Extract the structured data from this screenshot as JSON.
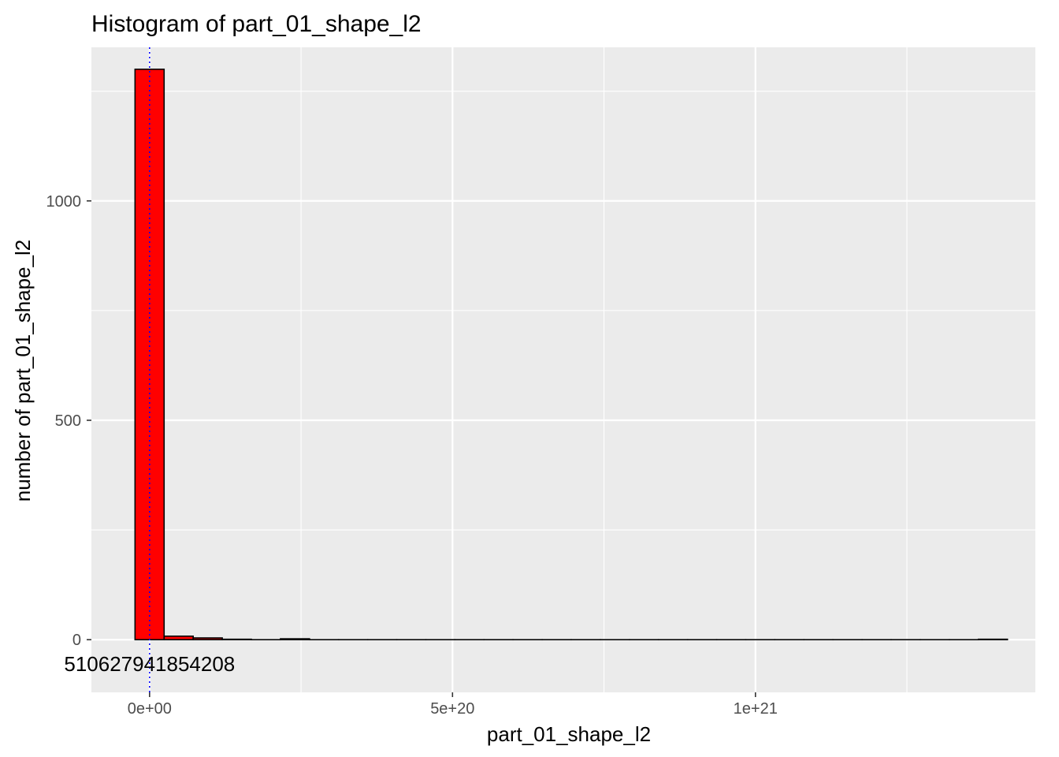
{
  "chart_data": {
    "type": "bar",
    "title": "Histogram of  part_01_shape_l2",
    "xlabel": "part_01_shape_l2",
    "ylabel": "number of  part_01_shape_l2",
    "x_ticks": [
      {
        "value": 0,
        "label": "0e+00"
      },
      {
        "value": 5e+20,
        "label": "5e+20"
      },
      {
        "value": 1e+21,
        "label": "1e+21"
      }
    ],
    "y_ticks": [
      {
        "value": 0,
        "label": "0"
      },
      {
        "value": 500,
        "label": "500"
      },
      {
        "value": 1000,
        "label": "1000"
      }
    ],
    "xlim": [
      -9.6e+19,
      1.462e+21
    ],
    "ylim": [
      -120,
      1350
    ],
    "bin_width": 4.8e+19,
    "bins": [
      {
        "x_start": -2.4e+19,
        "count": 1300
      },
      {
        "x_start": 2.4e+19,
        "count": 8
      },
      {
        "x_start": 7.2e+19,
        "count": 4
      },
      {
        "x_start": 1.2e+20,
        "count": 1
      },
      {
        "x_start": 1.68e+20,
        "count": 0
      },
      {
        "x_start": 2.16e+20,
        "count": 2
      },
      {
        "x_start": 2.64e+20,
        "count": 0
      },
      {
        "x_start": 3.12e+20,
        "count": 0
      },
      {
        "x_start": 3.6e+20,
        "count": 0
      },
      {
        "x_start": 4.08e+20,
        "count": 0
      },
      {
        "x_start": 4.56e+20,
        "count": 0
      },
      {
        "x_start": 5.04e+20,
        "count": 0
      },
      {
        "x_start": 5.52e+20,
        "count": 0
      },
      {
        "x_start": 6e+20,
        "count": 0
      },
      {
        "x_start": 6.48e+20,
        "count": 0
      },
      {
        "x_start": 6.96e+20,
        "count": 0
      },
      {
        "x_start": 7.44e+20,
        "count": 0
      },
      {
        "x_start": 7.92e+20,
        "count": 0
      },
      {
        "x_start": 8.4e+20,
        "count": 0
      },
      {
        "x_start": 8.88e+20,
        "count": 0
      },
      {
        "x_start": 9.36e+20,
        "count": 0
      },
      {
        "x_start": 9.84e+20,
        "count": 0
      },
      {
        "x_start": 1.032e+21,
        "count": 0
      },
      {
        "x_start": 1.08e+21,
        "count": 0
      },
      {
        "x_start": 1.128e+21,
        "count": 0
      },
      {
        "x_start": 1.176e+21,
        "count": 0
      },
      {
        "x_start": 1.224e+21,
        "count": 0
      },
      {
        "x_start": 1.272e+21,
        "count": 0
      },
      {
        "x_start": 1.32e+21,
        "count": 0
      },
      {
        "x_start": 1.368e+21,
        "count": 1
      }
    ],
    "vline": {
      "x": 0,
      "color": "#0000ff",
      "style": "dotted"
    },
    "annotation": {
      "text": "510627941854208",
      "x": 0,
      "y": -55
    },
    "colors": {
      "bar_fill": "#ff0000",
      "bar_outline": "#000000",
      "panel": "#ebebeb",
      "grid": "#ffffff"
    },
    "grid": true,
    "legend": "none"
  }
}
